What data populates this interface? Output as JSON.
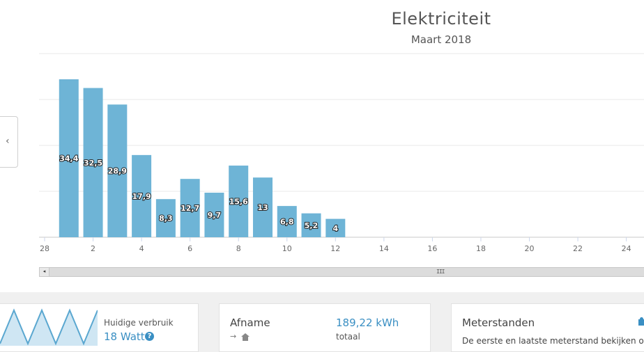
{
  "header": {
    "title": "Elektriciteit",
    "subtitle": "Maart 2018"
  },
  "navigation": {
    "prev_label": "‹"
  },
  "chart_data": {
    "type": "bar",
    "title": "Elektriciteit",
    "subtitle": "Maart 2018",
    "x": [
      1,
      2,
      3,
      4,
      5,
      6,
      7,
      8,
      9,
      10,
      11,
      12
    ],
    "values": [
      34.4,
      32.5,
      28.9,
      17.9,
      8.3,
      12.7,
      9.7,
      15.6,
      13,
      6.8,
      5.2,
      4
    ],
    "data_labels": [
      "34,4",
      "32,5",
      "28,9",
      "17,9",
      "8,3",
      "12,7",
      "9,7",
      "15,6",
      "13",
      "6,8",
      "5,2",
      "4"
    ],
    "x_tick_labels": [
      "28",
      "2",
      "4",
      "6",
      "8",
      "10",
      "12",
      "14",
      "16",
      "18",
      "20",
      "22",
      "24"
    ],
    "x_tick_values": [
      0,
      2,
      4,
      6,
      8,
      10,
      12,
      14,
      16,
      18,
      20,
      22,
      24
    ],
    "xlim": [
      0,
      24.5
    ],
    "ylim": [
      0,
      40
    ],
    "y_grid_values": [
      0,
      10,
      20,
      30,
      40
    ],
    "grid": true,
    "bar_color": "#6eb4d6"
  },
  "scrollbar": {
    "left_arrow": "◂",
    "grip": "III"
  },
  "cards": {
    "live": {
      "label": "Huidige verbruik",
      "value": "18 Watt",
      "help": "?",
      "sparkline": [
        2,
        34,
        2,
        34,
        2,
        34,
        2,
        34
      ]
    },
    "intake": {
      "label": "Afname",
      "icons": "→",
      "value": "189,22 kWh",
      "value_label": "totaal"
    },
    "meters": {
      "title": "Meterstanden",
      "description": "De eerste en laatste meterstand bekijken of al"
    }
  },
  "colors": {
    "accent": "#6eb4d6",
    "value_blue": "#3a8fc3"
  }
}
